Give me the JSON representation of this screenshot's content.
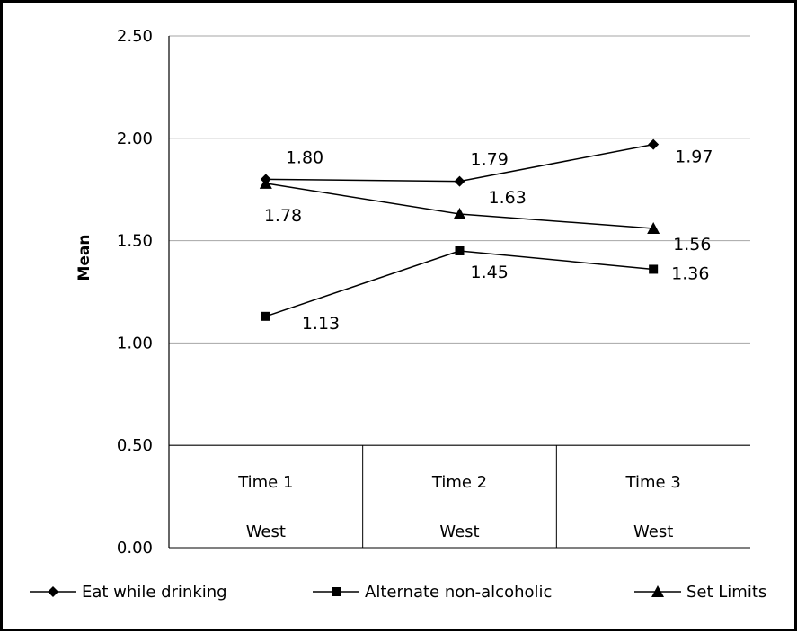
{
  "chart_data": {
    "type": "line",
    "title": "",
    "xlabel": "",
    "ylabel": "Mean",
    "ylim": [
      0,
      2.5
    ],
    "y_ticks": [
      "0.00",
      "0.50",
      "1.00",
      "1.50",
      "2.00",
      "2.50"
    ],
    "grid": true,
    "legend_position": "bottom",
    "categories": [
      {
        "label": "Time 1",
        "group": "West"
      },
      {
        "label": "Time 2",
        "group": "West"
      },
      {
        "label": "Time 3",
        "group": "West"
      }
    ],
    "series": [
      {
        "name": "Eat while drinking",
        "marker": "diamond",
        "values": [
          1.8,
          1.79,
          1.97
        ],
        "labels": [
          "1.80",
          "1.79",
          "1.97"
        ]
      },
      {
        "name": "Alternate non-alcoholic",
        "marker": "square",
        "values": [
          1.13,
          1.45,
          1.36
        ],
        "labels": [
          "1.13",
          "1.45",
          "1.36"
        ]
      },
      {
        "name": "Set Limits",
        "marker": "triangle",
        "values": [
          1.78,
          1.63,
          1.56
        ],
        "labels": [
          "1.78",
          "1.63",
          "1.56"
        ]
      }
    ],
    "colors": {
      "line": "#000000",
      "grid": "#a6a6a6",
      "background": "#ffffff"
    }
  }
}
